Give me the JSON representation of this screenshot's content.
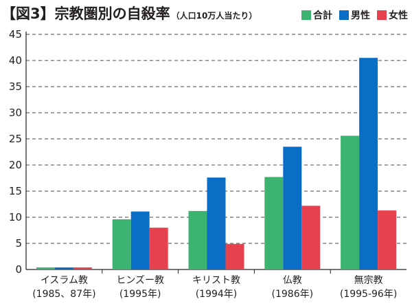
{
  "title": "【図3】宗教圏別の自殺率",
  "subtitle": "（人口10万人当たり）",
  "chart_data": {
    "type": "bar",
    "categories": [
      [
        "イスラム教",
        "(1985、87年)"
      ],
      [
        "ヒンズー教",
        "(1995年)"
      ],
      [
        "キリスト教",
        "(1994年)"
      ],
      [
        "仏教",
        "(1986年)"
      ],
      [
        "無宗教",
        "(1995-96年)"
      ]
    ],
    "series": [
      {
        "name": "合計",
        "color": "#3cb371",
        "values": [
          0.4,
          9.6,
          11.2,
          17.7,
          25.6
        ]
      },
      {
        "name": "男性",
        "color": "#0a6ec7",
        "values": [
          0.4,
          11.1,
          17.6,
          23.5,
          40.5
        ]
      },
      {
        "name": "女性",
        "color": "#e8414e",
        "values": [
          0.4,
          8.0,
          4.9,
          12.2,
          11.3
        ]
      }
    ],
    "ylim": [
      0,
      45
    ],
    "yticks": [
      0,
      5,
      10,
      15,
      20,
      25,
      30,
      35,
      40,
      45
    ],
    "grid": true,
    "legend_position": "top-right"
  }
}
